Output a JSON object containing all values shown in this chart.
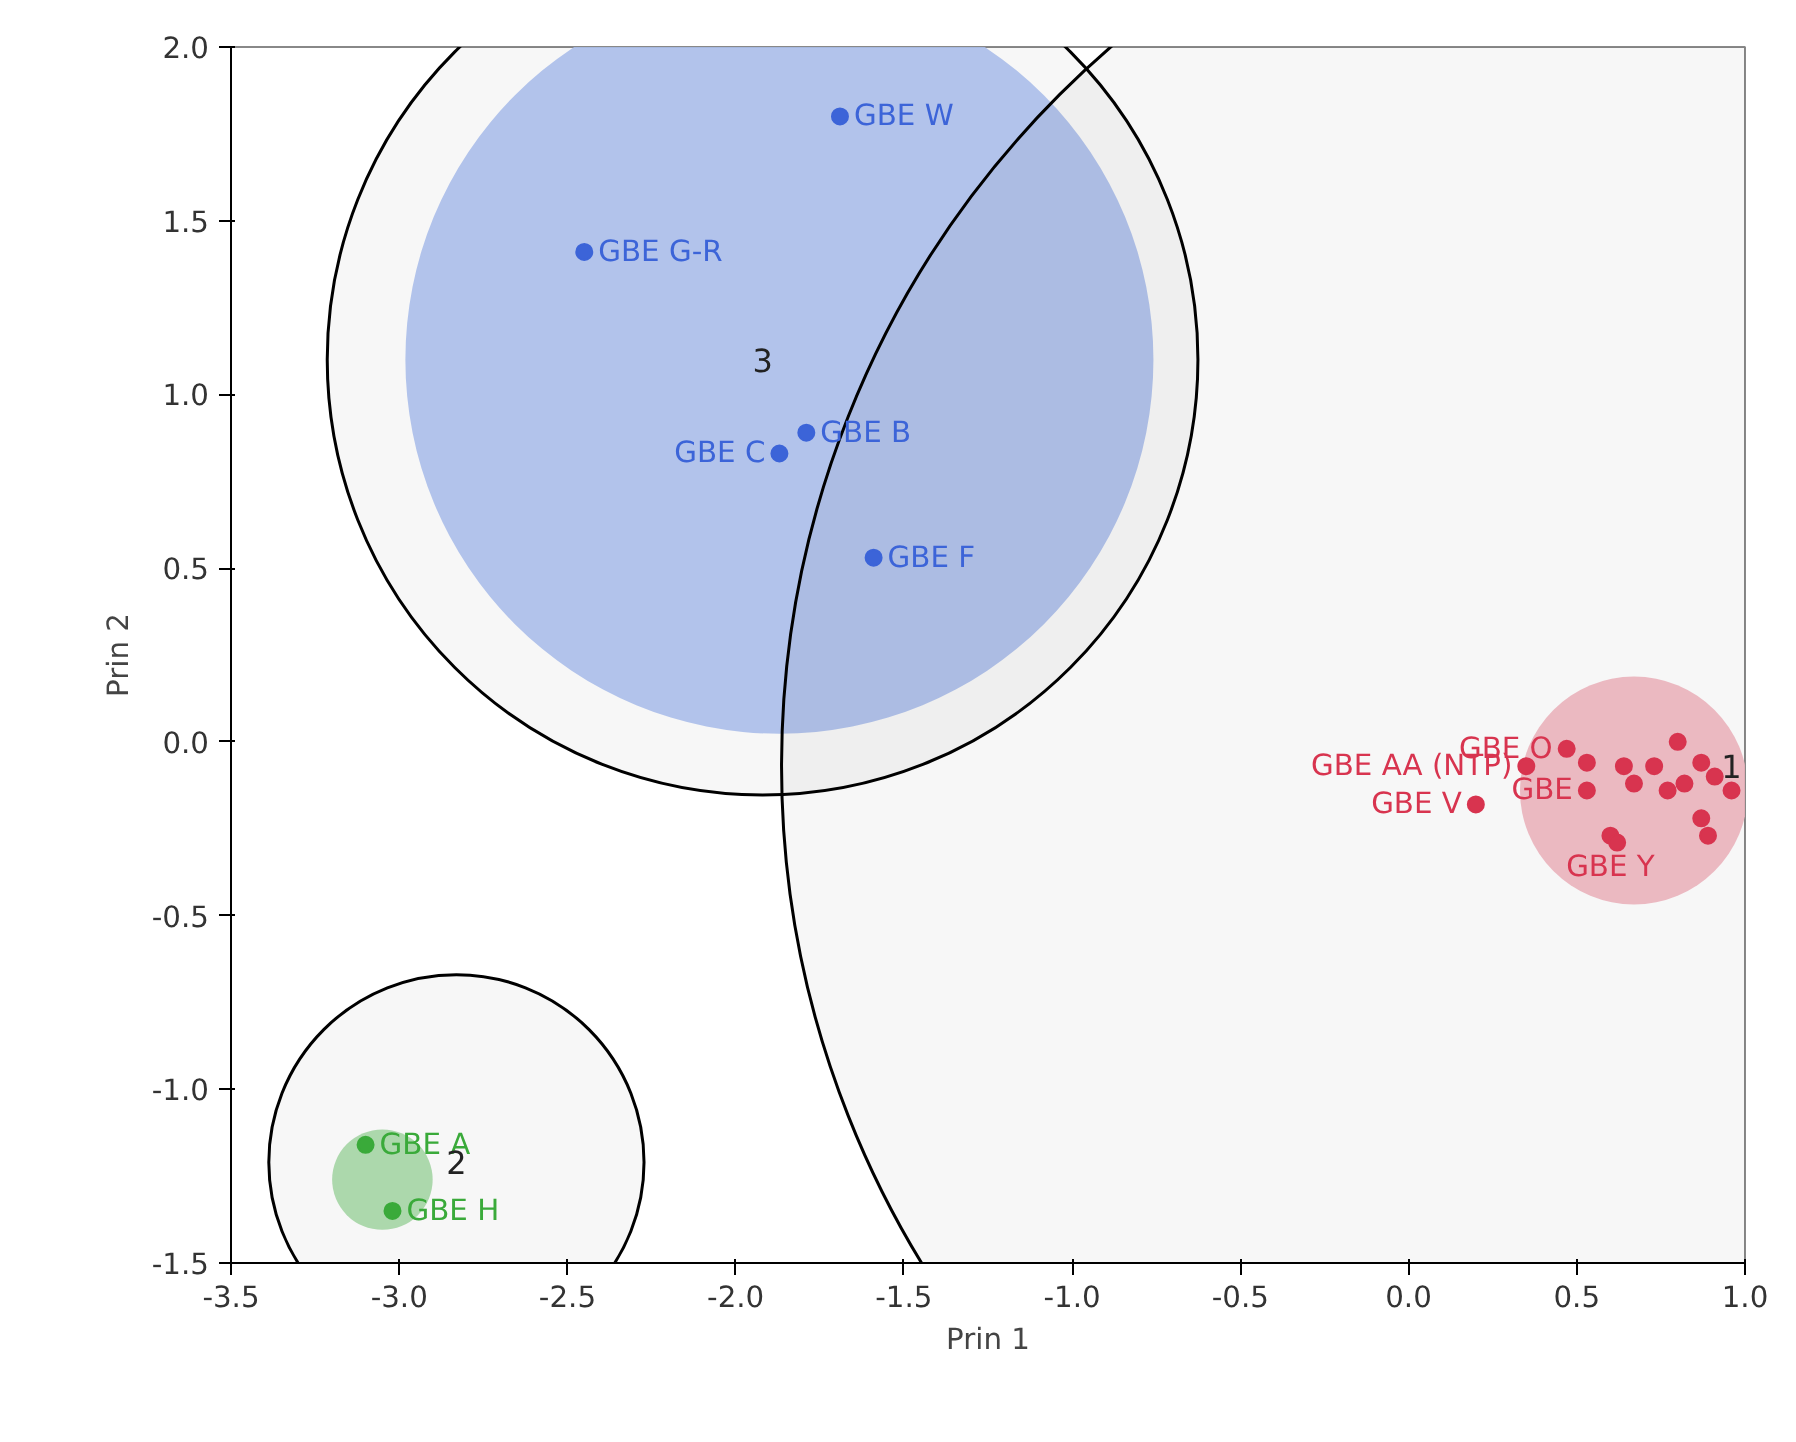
{
  "chart_data": {
    "type": "scatter",
    "xlabel": "Prin 1",
    "ylabel": "Prin 2",
    "xlim": [
      -3.5,
      1.0
    ],
    "ylim": [
      -1.5,
      2.0
    ],
    "xticks": [
      {
        "value": -3.5,
        "label": "-3.5"
      },
      {
        "value": -3,
        "label": "-3.0"
      },
      {
        "value": -2.5,
        "label": "-2.5"
      },
      {
        "value": -2,
        "label": "-2.0"
      },
      {
        "value": -1.5,
        "label": "-1.5"
      },
      {
        "value": -1,
        "label": "-1.0"
      },
      {
        "value": -0.5,
        "label": "-0.5"
      },
      {
        "value": 0,
        "label": "0.0"
      },
      {
        "value": 0.5,
        "label": "0.5"
      },
      {
        "value": 1,
        "label": "1.0"
      }
    ],
    "yticks": [
      {
        "value": -1.5,
        "label": "-1.5"
      },
      {
        "value": -1,
        "label": "-1.0"
      },
      {
        "value": -0.5,
        "label": "-0.5"
      },
      {
        "value": 0,
        "label": "0.0"
      },
      {
        "value": 0.5,
        "label": "0.5"
      },
      {
        "value": 1,
        "label": "1.0"
      },
      {
        "value": 1.5,
        "label": "1.5"
      },
      {
        "value": 2,
        "label": "2.0"
      }
    ],
    "grid": false,
    "marker": "circle",
    "series": [
      {
        "type": "bubble",
        "color": "#b0c4f2",
        "x": [
          0.67,
          -3.05,
          -1.87
        ],
        "values": [
          -0.14,
          -1.26,
          1.1
        ],
        "sizes": [
          0.0144,
          0.0028,
          0.155
        ],
        "colors": [
          "#f2b8c2",
          "#aadcaa",
          "#b0c4f2"
        ]
      },
      {
        "type": "bubble",
        "color": "#000000",
        "line_style": "solid",
        "x": [
          0.96,
          -2.83,
          -1.92
        ],
        "values": [
          -0.07,
          -1.21,
          1.1
        ],
        "sizes": [
          1,
          0.039,
          0.21
        ]
      },
      {
        "color": "#3c64d8",
        "x": [
          -1.69,
          -2.45,
          -1.87,
          -1.79,
          -1.59
        ],
        "values": [
          1.8,
          1.41,
          0.83,
          0.89,
          0.53
        ],
        "value_labels": [
          "GBE W",
          "GBE G-R",
          "GBE C",
          "GBE B",
          "GBE F"
        ]
      },
      {
        "color": "#3aaa3a",
        "x": [
          -3.1,
          -3.02
        ],
        "values": [
          -1.16,
          -1.35
        ],
        "value_labels": [
          "GBE A",
          "GBE H"
        ]
      },
      {
        "color": "#d8344f",
        "x": [
          0.47,
          0.53,
          0.64,
          0.73,
          0.8,
          0.87,
          0.91,
          0.96,
          0.82,
          0.77,
          0.67,
          0.87,
          0.89,
          0.6,
          0.62,
          0.35,
          0.2,
          0.53
        ],
        "values": [
          -0.02,
          -0.06,
          -0.07,
          -0.07,
          0.0,
          -0.06,
          -0.1,
          -0.14,
          -0.12,
          -0.14,
          -0.12,
          -0.22,
          -0.27,
          -0.27,
          -0.29,
          -0.07,
          -0.18,
          -0.14
        ],
        "value_labels": [
          "GBE O",
          null,
          null,
          null,
          null,
          null,
          null,
          null,
          null,
          null,
          null,
          null,
          null,
          "GBE Y",
          null,
          "GBE AA (NTP)",
          "GBE V",
          "GBE"
        ]
      }
    ],
    "annotations": [
      {
        "text": "1",
        "x": 0.96,
        "y": -0.07
      },
      {
        "text": "2",
        "x": -2.83,
        "y": -1.21
      },
      {
        "text": "3",
        "x": -1.92,
        "y": 1.1
      }
    ]
  }
}
